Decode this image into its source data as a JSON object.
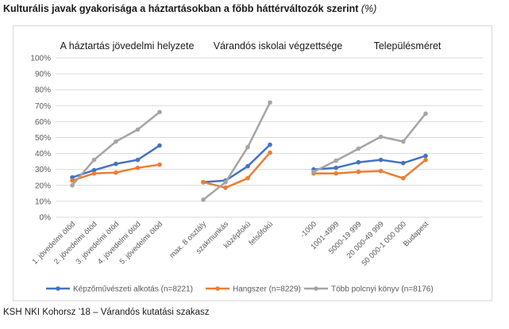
{
  "header": {
    "title": "Kulturális javak gyakorisága a háztartásokban a főbb háttérváltozók szerint",
    "unit": "(%)"
  },
  "footer": {
    "source": "KSH NKI Kohorsz ’18 – Várandós kutatási szakasz"
  },
  "colors": {
    "series": [
      "#4472c4",
      "#ed7d31",
      "#a5a5a5"
    ],
    "grid": "#d9d9d9",
    "axis_text": "#595959"
  },
  "chart_data": {
    "type": "line",
    "title": "",
    "ylim": [
      0,
      100
    ],
    "y_ticks": [
      "0%",
      "10%",
      "20%",
      "30%",
      "40%",
      "50%",
      "60%",
      "70%",
      "80%",
      "90%",
      "100%"
    ],
    "y_unit": "%",
    "grid": true,
    "legend_position": "bottom",
    "groups": [
      {
        "label": "A háztartás jövedelmi helyzete",
        "categories": [
          "1. jövedelmi ötöd",
          "2. jövedelmi ötöd",
          "3. jövedelmi ötöd",
          "4. jövedelmi ötöd",
          "5. jövedelmi ötöd"
        ]
      },
      {
        "label": "Várandós iskolai végzettsége",
        "categories": [
          "max. 8 osztály",
          "szakmunkás",
          "középfokú",
          "felsőfokú"
        ]
      },
      {
        "label": "Településméret",
        "categories": [
          "-1000",
          "1001-4999",
          "5000-19 999",
          "20 000-49 999",
          "50 000-1 000 000",
          "Budapest"
        ]
      }
    ],
    "series": [
      {
        "name": "Képzőművészeti alkotás (n=8221)",
        "values": [
          [
            25,
            29.5,
            33.5,
            36,
            45
          ],
          [
            22,
            23,
            32,
            45.5
          ],
          [
            30,
            31,
            34.5,
            36,
            34,
            38.5
          ]
        ]
      },
      {
        "name": "Hangszer (n=8229)",
        "values": [
          [
            23,
            27.5,
            28,
            31,
            33
          ],
          [
            22,
            18.5,
            24.5,
            40.5
          ],
          [
            27.5,
            27.5,
            28.5,
            29,
            24.5,
            36
          ]
        ]
      },
      {
        "name": "Több polcnyi könyv (n=8176)",
        "values": [
          [
            20,
            36,
            47.5,
            55,
            66
          ],
          [
            11,
            22,
            44,
            72
          ],
          [
            28.5,
            35.5,
            43,
            50.5,
            47.5,
            65
          ]
        ]
      }
    ]
  }
}
